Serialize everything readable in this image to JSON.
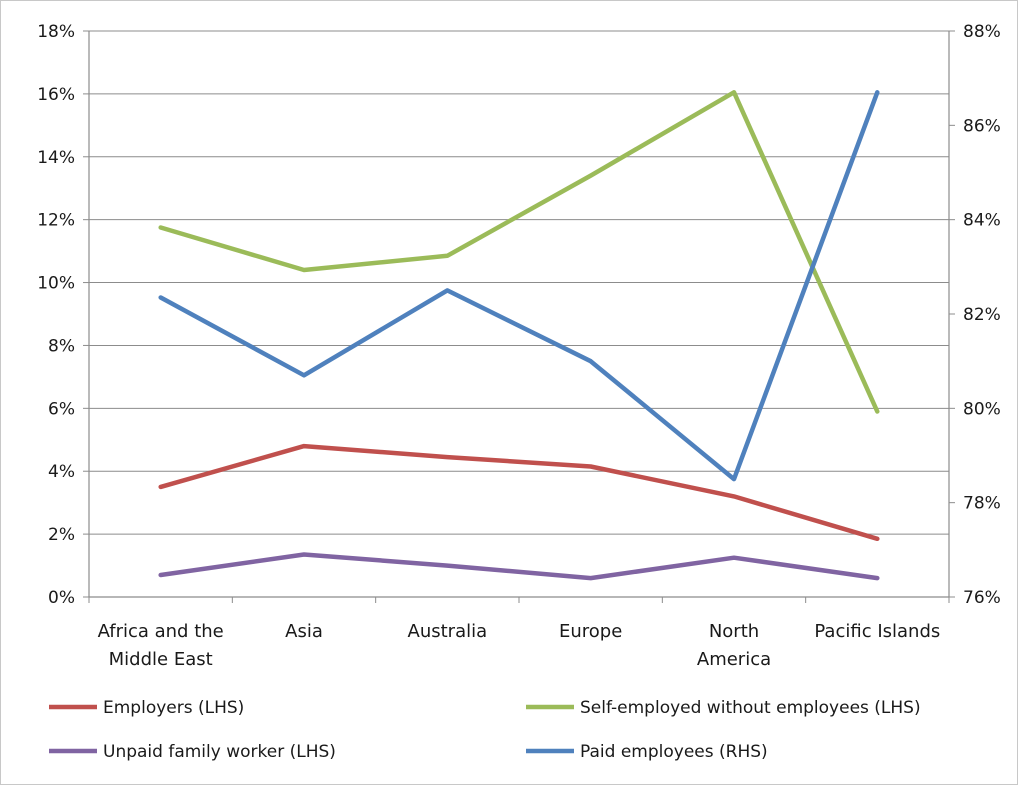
{
  "chart_data": {
    "type": "line",
    "title": "",
    "categories": [
      "Africa and the Middle East",
      "Asia",
      "Australia",
      "Europe",
      "North America",
      "Pacific Islands"
    ],
    "category_lines": [
      [
        "Africa and the",
        "Middle East"
      ],
      [
        "Asia"
      ],
      [
        "Australia"
      ],
      [
        "Europe"
      ],
      [
        "North",
        "America"
      ],
      [
        "Pacific Islands"
      ]
    ],
    "y_left": {
      "min": 0,
      "max": 18,
      "step": 2,
      "suffix": "%",
      "ticks": [
        "0%",
        "2%",
        "4%",
        "6%",
        "8%",
        "10%",
        "12%",
        "14%",
        "16%",
        "18%"
      ]
    },
    "y_right": {
      "min": 76,
      "max": 88,
      "step": 2,
      "suffix": "%",
      "ticks": [
        "76%",
        "78%",
        "80%",
        "82%",
        "84%",
        "86%",
        "88%"
      ]
    },
    "grid": true,
    "legend_position": "bottom",
    "series": [
      {
        "name": "Employers (LHS)",
        "axis": "left",
        "color": "#c0504d",
        "values": [
          3.5,
          4.8,
          4.45,
          4.15,
          3.2,
          1.85
        ]
      },
      {
        "name": "Self-employed without employees (LHS)",
        "axis": "left",
        "color": "#9bbb59",
        "values": [
          11.75,
          10.4,
          10.85,
          13.4,
          16.05,
          5.9
        ]
      },
      {
        "name": "Unpaid family worker (LHS)",
        "axis": "left",
        "color": "#8064a2",
        "values": [
          0.7,
          1.35,
          1.0,
          0.6,
          1.25,
          0.6
        ]
      },
      {
        "name": "Paid employees (RHS)",
        "axis": "right",
        "color": "#4f81bd",
        "values": [
          82.35,
          80.7,
          82.5,
          81.0,
          78.5,
          86.7
        ]
      }
    ]
  }
}
